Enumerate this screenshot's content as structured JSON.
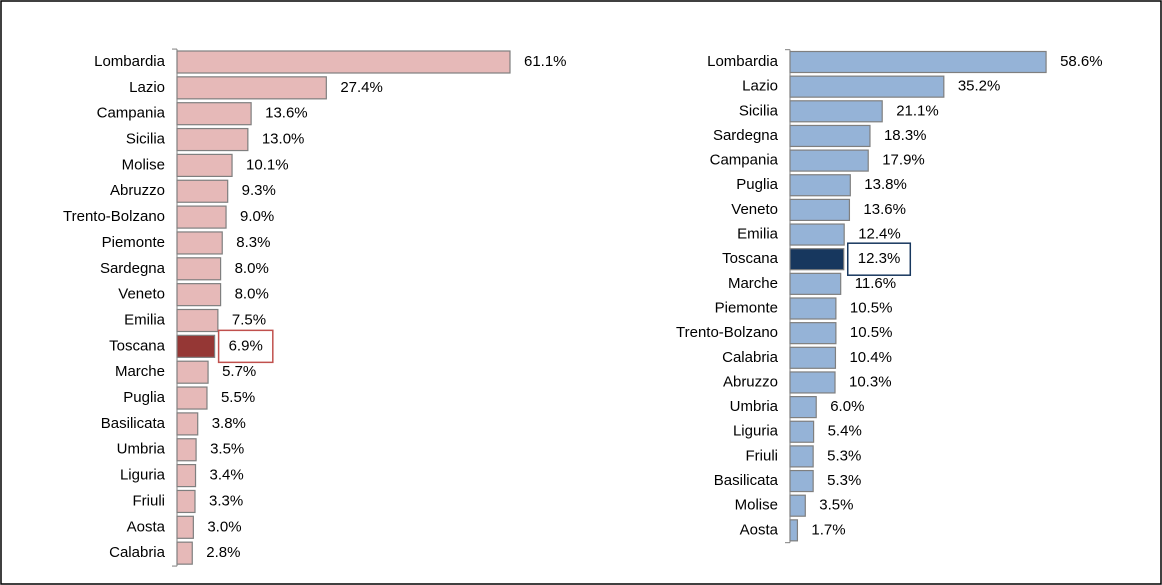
{
  "chart_data": [
    {
      "type": "bar",
      "orientation": "horizontal",
      "categories": [
        "Lombardia",
        "Lazio",
        "Campania",
        "Sicilia",
        "Molise",
        "Abruzzo",
        "Trento-Bolzano",
        "Piemonte",
        "Sardegna",
        "Veneto",
        "Emilia",
        "Toscana",
        "Marche",
        "Puglia",
        "Basilicata",
        "Umbria",
        "Liguria",
        "Friuli",
        "Aosta",
        "Calabria"
      ],
      "values": [
        61.1,
        27.4,
        13.6,
        13.0,
        10.1,
        9.3,
        9.0,
        8.3,
        8.0,
        8.0,
        7.5,
        6.9,
        5.7,
        5.5,
        3.8,
        3.5,
        3.4,
        3.3,
        3.0,
        2.8
      ],
      "value_labels": [
        "61.1%",
        "27.4%",
        "13.6%",
        "13.0%",
        "10.1%",
        "9.3%",
        "9.0%",
        "8.3%",
        "8.0%",
        "8.0%",
        "7.5%",
        "6.9%",
        "5.7%",
        "5.5%",
        "3.8%",
        "3.5%",
        "3.4%",
        "3.3%",
        "3.0%",
        "2.8%"
      ],
      "colors": [
        "#e6b9b8",
        "#e6b9b8",
        "#e6b9b8",
        "#e6b9b8",
        "#e6b9b8",
        "#e6b9b8",
        "#e6b9b8",
        "#e6b9b8",
        "#e6b9b8",
        "#e6b9b8",
        "#e6b9b8",
        "#953735",
        "#e6b9b8",
        "#e6b9b8",
        "#e6b9b8",
        "#e6b9b8",
        "#e6b9b8",
        "#e6b9b8",
        "#e6b9b8",
        "#e6b9b8"
      ],
      "highlight_box_color": "#c0504d"
    },
    {
      "type": "bar",
      "orientation": "horizontal",
      "categories": [
        "Lombardia",
        "Lazio",
        "Sicilia",
        "Sardegna",
        "Campania",
        "Puglia",
        "Veneto",
        "Emilia",
        "Toscana",
        "Marche",
        "Piemonte",
        "Trento-Bolzano",
        "Calabria",
        "Abruzzo",
        "Umbria",
        "Liguria",
        "Friuli",
        "Basilicata",
        "Molise",
        "Aosta"
      ],
      "values": [
        58.6,
        35.2,
        21.1,
        18.3,
        17.9,
        13.8,
        13.6,
        12.4,
        12.3,
        11.6,
        10.5,
        10.5,
        10.4,
        10.3,
        6.0,
        5.4,
        5.3,
        5.3,
        3.5,
        1.7
      ],
      "value_labels": [
        "58.6%",
        "35.2%",
        "21.1%",
        "18.3%",
        "17.9%",
        "13.8%",
        "13.6%",
        "12.4%",
        "12.3%",
        "11.6%",
        "10.5%",
        "10.5%",
        "10.4%",
        "10.3%",
        "6.0%",
        "5.4%",
        "5.3%",
        "5.3%",
        "3.5%",
        "1.7%"
      ],
      "colors": [
        "#95b3d7",
        "#95b3d7",
        "#95b3d7",
        "#95b3d7",
        "#95b3d7",
        "#95b3d7",
        "#95b3d7",
        "#95b3d7",
        "#17375e",
        "#95b3d7",
        "#95b3d7",
        "#95b3d7",
        "#95b3d7",
        "#95b3d7",
        "#95b3d7",
        "#95b3d7",
        "#95b3d7",
        "#95b3d7",
        "#95b3d7",
        "#95b3d7"
      ],
      "highlight_box_color": "#17375e"
    }
  ]
}
